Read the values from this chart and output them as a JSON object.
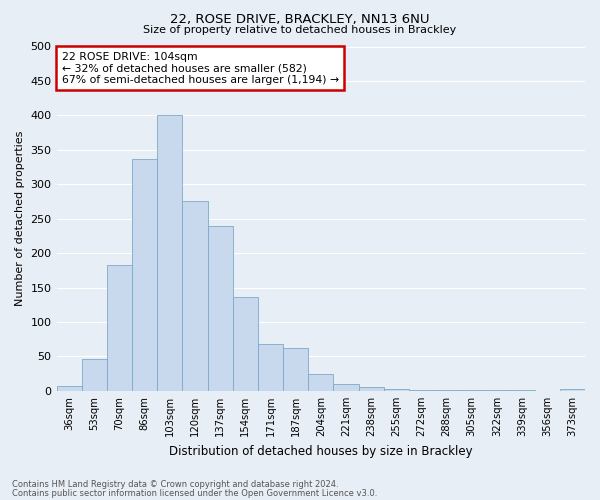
{
  "title1": "22, ROSE DRIVE, BRACKLEY, NN13 6NU",
  "title2": "Size of property relative to detached houses in Brackley",
  "xlabel": "Distribution of detached houses by size in Brackley",
  "ylabel": "Number of detached properties",
  "categories": [
    "36sqm",
    "53sqm",
    "70sqm",
    "86sqm",
    "103sqm",
    "120sqm",
    "137sqm",
    "154sqm",
    "171sqm",
    "187sqm",
    "204sqm",
    "221sqm",
    "238sqm",
    "255sqm",
    "272sqm",
    "288sqm",
    "305sqm",
    "322sqm",
    "339sqm",
    "356sqm",
    "373sqm"
  ],
  "values": [
    7,
    46,
    183,
    337,
    400,
    275,
    240,
    136,
    68,
    62,
    25,
    10,
    6,
    3,
    2,
    2,
    1,
    1,
    1,
    0,
    3
  ],
  "bar_color": "#c8d8ed",
  "bar_edge_color": "#7aaac8",
  "ylim": [
    0,
    500
  ],
  "yticks": [
    0,
    50,
    100,
    150,
    200,
    250,
    300,
    350,
    400,
    450,
    500
  ],
  "annotation_text": "22 ROSE DRIVE: 104sqm\n← 32% of detached houses are smaller (582)\n67% of semi-detached houses are larger (1,194) →",
  "annotation_box_color": "#ffffff",
  "annotation_border_color": "#cc0000",
  "footer1": "Contains HM Land Registry data © Crown copyright and database right 2024.",
  "footer2": "Contains public sector information licensed under the Open Government Licence v3.0.",
  "bg_color": "#e8eef5",
  "grid_color": "#ffffff"
}
